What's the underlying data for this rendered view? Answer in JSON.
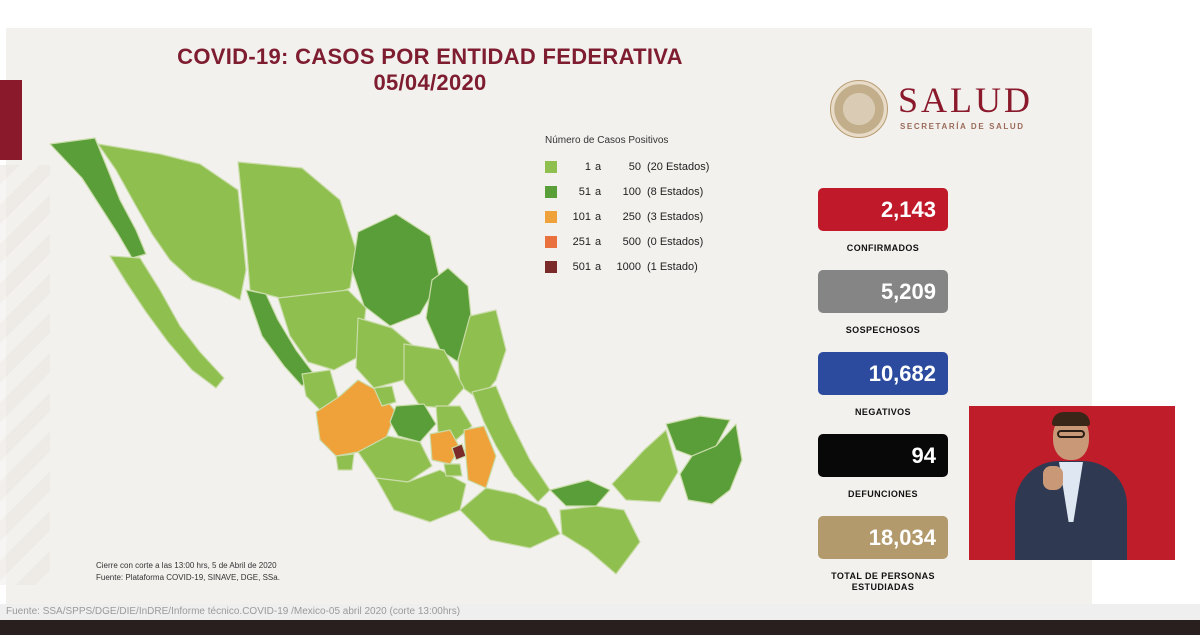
{
  "title": {
    "line1": "COVID-19: CASOS POR ENTIDAD FEDERATIVA",
    "line2": "05/04/2020"
  },
  "logo": {
    "brand": "SALUD",
    "subtitle": "SECRETARÍA DE SALUD"
  },
  "legend": {
    "title": "Número de Casos Positivos",
    "items": [
      {
        "min": "1",
        "a": "a",
        "max": "50",
        "states": "(20 Estados)",
        "color": "#8fbf4f"
      },
      {
        "min": "51",
        "a": "a",
        "max": "100",
        "states": "(8 Estados)",
        "color": "#5a9e3a"
      },
      {
        "min": "101",
        "a": "a",
        "max": "250",
        "states": "(3 Estados)",
        "color": "#f0a23a"
      },
      {
        "min": "251",
        "a": "a",
        "max": "500",
        "states": "(0 Estados)",
        "color": "#e8713d"
      },
      {
        "min": "501",
        "a": "a",
        "max": "1000",
        "states": "(1 Estado)",
        "color": "#7b2a2a"
      }
    ]
  },
  "stats": [
    {
      "value": "2,143",
      "label": "CONFIRMADOS",
      "color": "#c0192a"
    },
    {
      "value": "5,209",
      "label": "SOSPECHOSOS",
      "color": "#858585"
    },
    {
      "value": "10,682",
      "label": "NEGATIVOS",
      "color": "#2c4b9e"
    },
    {
      "value": "94",
      "label": "DEFUNCIONES",
      "color": "#080808"
    },
    {
      "value": "18,034",
      "label": "TOTAL DE PERSONAS ESTUDIADAS",
      "color": "#b39a6c"
    }
  ],
  "footnote": {
    "line1": "Cierre con corte a las 13:00 hrs, 5 de Abril de 2020",
    "line2": "Fuente: Plataforma COVID-19, SINAVE, DGE, SSa."
  },
  "source_bar": "Fuente: SSA/SPPS/DGE/DIE/InDRE/Informe técnico.COVID-19 /Mexico-05 abril 2020 (corte 13:00hrs)",
  "map_colors": {
    "light": "#8fbf4f",
    "medium": "#5a9e3a",
    "orange": "#f0a23a",
    "dark": "#7b2a2a",
    "border": "#c9dca8"
  }
}
